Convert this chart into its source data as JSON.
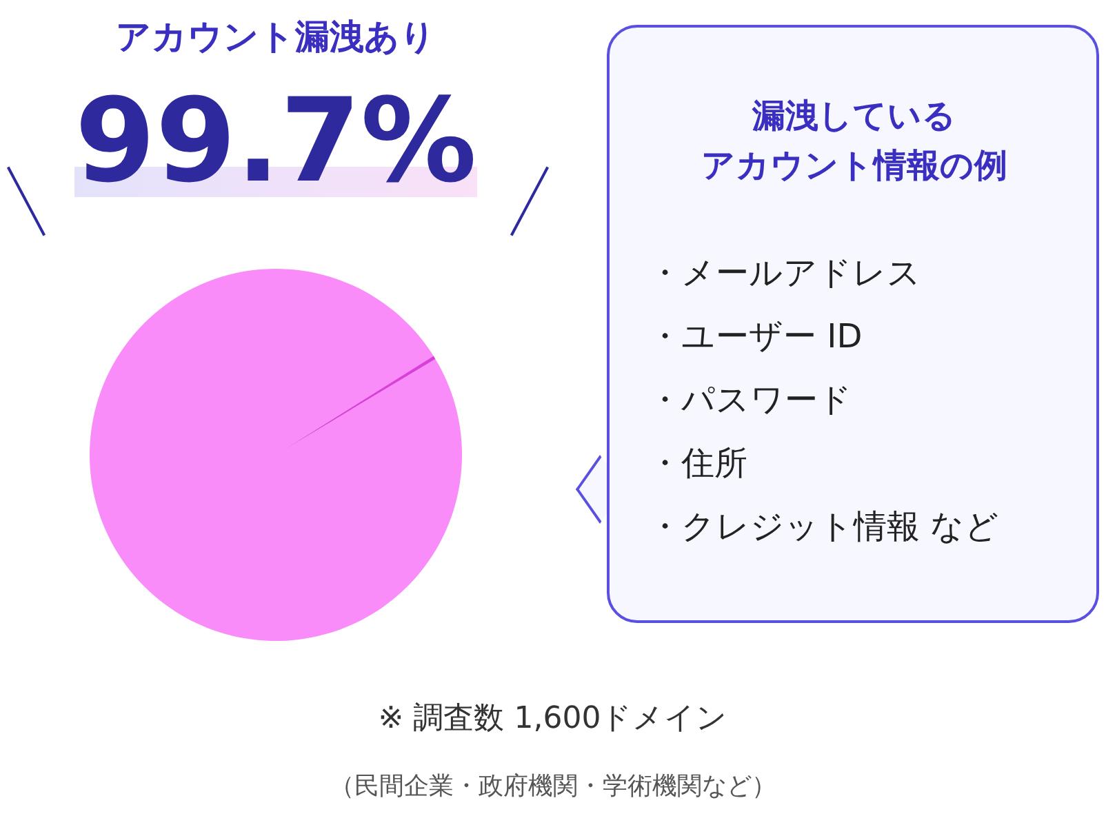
{
  "chart_data": {
    "type": "pie",
    "categories": [
      "アカウント漏洩あり",
      null
    ],
    "values": [
      99.7,
      0.3
    ],
    "colors": [
      "#fa8cfa",
      "#d940d9"
    ],
    "value_labels": [
      "99.7%",
      null
    ],
    "annotations": [
      "漏洩している",
      "アカウント情報の例",
      "・メールアドレス",
      "・ユーザー ID",
      "・パスワード",
      "・住所",
      "・クレジット情報 など",
      "※ 調査数 1,600ドメイン",
      "（民間企業・政府機関・学術機関など）"
    ]
  }
}
